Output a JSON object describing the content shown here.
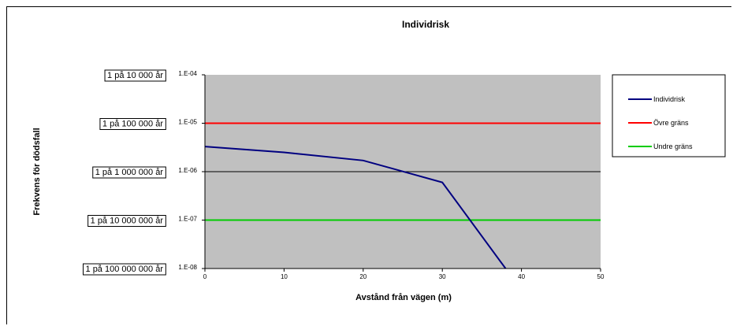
{
  "chart_data": {
    "type": "line",
    "title": "Individrisk",
    "xlabel": "Avstånd från vägen (m)",
    "ylabel": "Frekvens för dödsfall",
    "xlim": [
      0,
      50
    ],
    "ylim": [
      1e-08,
      0.0001
    ],
    "yscale": "log",
    "grid": false,
    "plot_background": "#c0c0c0",
    "x_ticks": [
      "0",
      "10",
      "20",
      "30",
      "40",
      "50"
    ],
    "y_ticks": [
      "1.E-04",
      "1.E-05",
      "1.E-06",
      "1.E-07",
      "1.E-08"
    ],
    "y_tick_values": [
      0.0001,
      1e-05,
      1e-06,
      1e-07,
      1e-08
    ],
    "frequency_labels": [
      "1 på 10 000 år",
      "1 på 100 000 år",
      "1 på 1 000 000 år",
      "1 på 10 000 000 år",
      "1 på 100 000 000 år"
    ],
    "legend_position": "right",
    "series": [
      {
        "name": "Individrisk",
        "color": "#000080",
        "x": [
          0,
          10,
          20,
          30,
          38
        ],
        "y": [
          3.3e-06,
          2.5e-06,
          1.7e-06,
          6e-07,
          1e-08
        ]
      },
      {
        "name": "Övre gräns",
        "color": "#ff0000",
        "x": [
          0,
          50
        ],
        "y": [
          1e-05,
          1e-05
        ]
      },
      {
        "name": "Undre gräns",
        "color": "#00cc00",
        "x": [
          0,
          50
        ],
        "y": [
          1e-07,
          1e-07
        ]
      }
    ],
    "reference_lines": [
      {
        "y": 1e-06,
        "color": "#000000"
      }
    ]
  }
}
